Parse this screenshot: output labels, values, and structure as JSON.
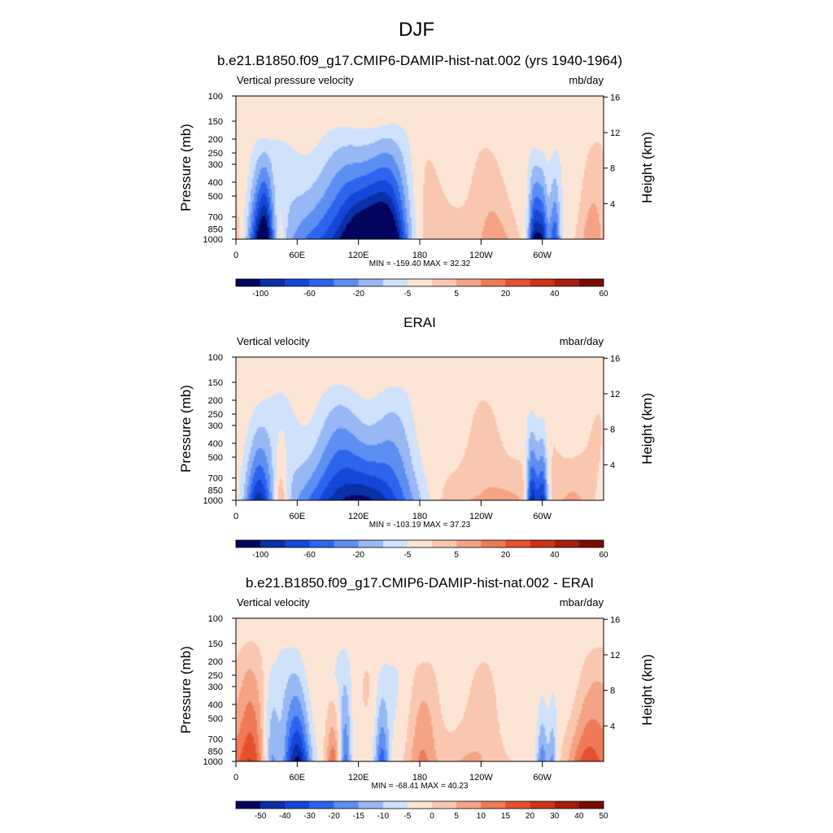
{
  "figure_title": "DJF",
  "palette": [
    "#03045e",
    "#0a2fa7",
    "#1446d9",
    "#2d64ee",
    "#5d8ef2",
    "#97b7f5",
    "#cfe1fb",
    "#fde5d6",
    "#f9c7af",
    "#f4a384",
    "#ee7a57",
    "#e5502e",
    "#cc3318",
    "#a61d0c",
    "#7a0c04"
  ],
  "chart_data": [
    {
      "type": "heatmap",
      "title": "b.e21.B1850.f09_g17.CMIP6-DAMIP-hist-nat.002 (yrs 1940-1964)",
      "left_label": "Vertical pressure velocity",
      "right_label": "mb/day",
      "ylabel": "Pressure (mb)",
      "y2label": "Height (km)",
      "x_ticks": [
        "0",
        "60E",
        "120E",
        "180",
        "120W",
        "60W"
      ],
      "x_tick_lon": [
        0,
        60,
        120,
        180,
        240,
        300
      ],
      "xlim": [
        0,
        360
      ],
      "y_ticks": [
        100,
        150,
        200,
        250,
        300,
        400,
        500,
        700,
        850,
        1000
      ],
      "ylim": [
        100,
        1000
      ],
      "y2_ticks": [
        16,
        12,
        8,
        4
      ],
      "stats": "MIN = -159.40  MAX =  32.32",
      "colorbar_labels": [
        "-100",
        "-60",
        "-20",
        "-5",
        "5",
        "20",
        "40",
        "60"
      ],
      "colorbar_label_boundaries": [
        1,
        3,
        5,
        7,
        9,
        11,
        13,
        15
      ],
      "features": [
        {
          "lon": 23,
          "p_top": 170,
          "amp": -70,
          "w": 8
        },
        {
          "lon": 29,
          "p_top": 200,
          "amp": -45,
          "w": 5
        },
        {
          "lon": 44,
          "p_top": 250,
          "amp": 18,
          "w": 4
        },
        {
          "lon": 85,
          "p_top": 160,
          "amp": -50,
          "w": 30
        },
        {
          "lon": 125,
          "p_top": 150,
          "amp": -85,
          "w": 18
        },
        {
          "lon": 150,
          "p_top": 150,
          "amp": -85,
          "w": 14
        },
        {
          "lon": 203,
          "p_top": 180,
          "amp": 15,
          "w": 25
        },
        {
          "lon": 255,
          "p_top": 200,
          "amp": 24,
          "w": 14
        },
        {
          "lon": 292,
          "p_top": 200,
          "amp": -75,
          "w": 4
        },
        {
          "lon": 300,
          "p_top": 200,
          "amp": -70,
          "w": 4
        },
        {
          "lon": 312,
          "p_top": 200,
          "amp": -55,
          "w": 4
        },
        {
          "lon": 349,
          "p_top": 170,
          "amp": 28,
          "w": 10
        }
      ]
    },
    {
      "type": "heatmap",
      "title": "ERAI",
      "left_label": "Vertical velocity",
      "right_label": "mbar/day",
      "ylabel": "Pressure (mb)",
      "y2label": "Height (km)",
      "x_ticks": [
        "0",
        "60E",
        "120E",
        "180",
        "120W",
        "60W"
      ],
      "x_tick_lon": [
        0,
        60,
        120,
        180,
        240,
        300
      ],
      "xlim": [
        0,
        360
      ],
      "y_ticks": [
        100,
        150,
        200,
        250,
        300,
        400,
        500,
        700,
        850,
        1000
      ],
      "ylim": [
        100,
        1000
      ],
      "y2_ticks": [
        16,
        12,
        8,
        4
      ],
      "stats": "MIN = -103.19  MAX =  37.23",
      "colorbar_labels": [
        "-100",
        "-60",
        "-20",
        "-5",
        "5",
        "20",
        "40",
        "60"
      ],
      "colorbar_label_boundaries": [
        1,
        3,
        5,
        7,
        9,
        11,
        13,
        15
      ],
      "features": [
        {
          "lon": 22,
          "p_top": 170,
          "amp": -45,
          "w": 9
        },
        {
          "lon": 44,
          "p_top": 250,
          "amp": 22,
          "w": 5
        },
        {
          "lon": 120,
          "p_top": 150,
          "amp": -55,
          "w": 42
        },
        {
          "lon": 215,
          "p_top": 180,
          "amp": 14,
          "w": 28
        },
        {
          "lon": 270,
          "p_top": 200,
          "amp": 12,
          "w": 20
        },
        {
          "lon": 290,
          "p_top": 200,
          "amp": -55,
          "w": 4
        },
        {
          "lon": 300,
          "p_top": 200,
          "amp": -50,
          "w": 4
        },
        {
          "lon": 330,
          "p_top": 200,
          "amp": 14,
          "w": 15
        }
      ]
    },
    {
      "type": "heatmap",
      "title": "b.e21.B1850.f09_g17.CMIP6-DAMIP-hist-nat.002 - ERAI",
      "left_label": "Vertical velocity",
      "right_label": "mbar/day",
      "ylabel": "Pressure (mb)",
      "y2label": "Height (km)",
      "x_ticks": [
        "0",
        "60E",
        "120E",
        "180",
        "120W",
        "60W"
      ],
      "x_tick_lon": [
        0,
        60,
        120,
        180,
        240,
        300
      ],
      "xlim": [
        0,
        360
      ],
      "y_ticks": [
        100,
        150,
        200,
        250,
        300,
        400,
        500,
        700,
        850,
        1000
      ],
      "ylim": [
        100,
        1000
      ],
      "y2_ticks": [
        16,
        12,
        8,
        4
      ],
      "stats": "MIN = -68.41  MAX =  40.23",
      "colorbar_labels": [
        "-50",
        "-40",
        "-30",
        "-20",
        "-15",
        "-10",
        "-5",
        "0",
        "5",
        "10",
        "15",
        "20",
        "30",
        "40",
        "50"
      ],
      "colorbar_label_boundaries": [
        1,
        2,
        3,
        4,
        5,
        6,
        7,
        8,
        9,
        10,
        11,
        12,
        13,
        14,
        15
      ],
      "features": [
        {
          "lon": 15,
          "p_top": 130,
          "amp": 30,
          "w": 9
        },
        {
          "lon": 35,
          "p_top": 200,
          "amp": -20,
          "w": 5
        },
        {
          "lon": 60,
          "p_top": 140,
          "amp": -50,
          "w": 9
        },
        {
          "lon": 95,
          "p_top": 250,
          "amp": 24,
          "w": 5
        },
        {
          "lon": 107,
          "p_top": 150,
          "amp": -28,
          "w": 4
        },
        {
          "lon": 143,
          "p_top": 180,
          "amp": -30,
          "w": 5
        },
        {
          "lon": 182,
          "p_top": 200,
          "amp": 18,
          "w": 10
        },
        {
          "lon": 230,
          "p_top": 200,
          "amp": 12,
          "w": 25
        },
        {
          "lon": 300,
          "p_top": 200,
          "amp": -25,
          "w": 4
        },
        {
          "lon": 310,
          "p_top": 200,
          "amp": -20,
          "w": 3
        },
        {
          "lon": 345,
          "p_top": 150,
          "amp": 30,
          "w": 14
        }
      ]
    }
  ]
}
